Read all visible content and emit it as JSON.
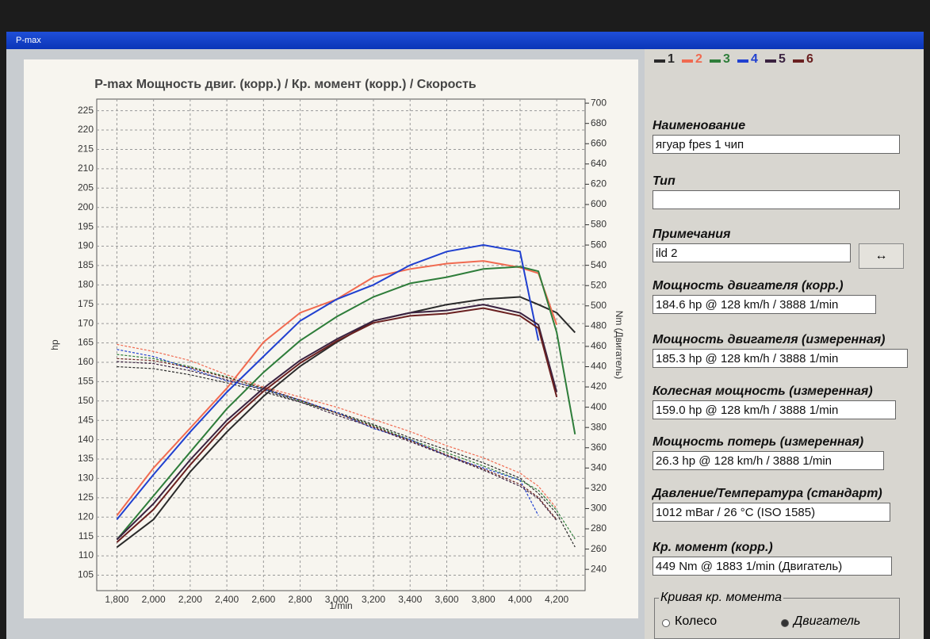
{
  "window": {
    "title": "P-max"
  },
  "chart_data": {
    "type": "line",
    "title": "P-max Мощность двиг. (корр.) / Кр. момент (корр.) / Скорость",
    "x_label": "1/min",
    "y_label": "hp",
    "y2_label": "Nm (Двигатель)",
    "x": [
      1800,
      2000,
      2200,
      2400,
      2600,
      2800,
      3000,
      3200,
      3400,
      3600,
      3800,
      4000,
      4100,
      4200,
      4300
    ],
    "xlim": [
      1690,
      4355
    ],
    "xticks": [
      {
        "value": 1800,
        "label": "1,800"
      },
      {
        "value": 2000,
        "label": "2,000"
      },
      {
        "value": 2200,
        "label": "2,200"
      },
      {
        "value": 2400,
        "label": "2,400"
      },
      {
        "value": 2600,
        "label": "2,600"
      },
      {
        "value": 2800,
        "label": "2,800"
      },
      {
        "value": 3000,
        "label": "3,000"
      },
      {
        "value": 3200,
        "label": "3,200"
      },
      {
        "value": 3400,
        "label": "3,400"
      },
      {
        "value": 3600,
        "label": "3,600"
      },
      {
        "value": 3800,
        "label": "3,800"
      },
      {
        "value": 4000,
        "label": "4,000"
      },
      {
        "value": 4200,
        "label": "4,200"
      }
    ],
    "ylim": [
      101,
      228
    ],
    "yticks": [
      105,
      110,
      115,
      120,
      125,
      130,
      135,
      140,
      145,
      150,
      155,
      160,
      165,
      170,
      175,
      180,
      185,
      190,
      195,
      200,
      205,
      210,
      215,
      220,
      225
    ],
    "y2lim": [
      219,
      704
    ],
    "y2ticks": [
      240,
      260,
      280,
      300,
      320,
      340,
      360,
      380,
      400,
      420,
      440,
      460,
      480,
      500,
      520,
      540,
      560,
      580,
      600,
      620,
      640,
      660,
      680,
      700
    ],
    "grid": true,
    "series": [
      {
        "name": "1",
        "color": "#2a2a2a",
        "values": [
          112.2,
          119.4,
          131.7,
          142,
          151.2,
          159,
          165.2,
          170.7,
          172.8,
          174.9,
          176.3,
          176.9,
          174.9,
          172.8,
          167.7
        ],
        "torque": [
          440,
          438,
          432,
          424,
          415,
          405,
          395,
          383,
          370,
          358,
          345,
          330,
          315,
          295,
          262
        ]
      },
      {
        "name": "2",
        "color": "#f06a50",
        "values": [
          120.4,
          132.7,
          143,
          153.3,
          165.2,
          172.8,
          176.3,
          182,
          184.1,
          185.5,
          186.2,
          184.5,
          183,
          169.7,
          null
        ],
        "torque": [
          462,
          455,
          446,
          432,
          420,
          410,
          400,
          388,
          376,
          362,
          350,
          335,
          322,
          300,
          null
        ]
      },
      {
        "name": "3",
        "color": "#2e7d3a",
        "values": [
          114.2,
          125.5,
          136.8,
          148,
          157.4,
          165.6,
          171.8,
          176.9,
          180.4,
          182,
          184.1,
          184.7,
          183.5,
          167.7,
          141.4
        ],
        "torque": [
          452,
          448,
          440,
          430,
          418,
          406,
          394,
          382,
          368,
          355,
          342,
          328,
          318,
          298,
          270
        ]
      },
      {
        "name": "4",
        "color": "#2040d0",
        "values": [
          119.4,
          131,
          142,
          152.3,
          161.5,
          170.7,
          176.3,
          180,
          185.1,
          188.6,
          190.3,
          188.6,
          165.6,
          null,
          null
        ],
        "torque": [
          457,
          450,
          438,
          426,
          418,
          407,
          395,
          379,
          368,
          352,
          340,
          328,
          293,
          null,
          null
        ]
      },
      {
        "name": "5",
        "color": "#3a2240",
        "values": [
          114.2,
          123.5,
          134.8,
          145,
          153.3,
          160.5,
          166,
          170.7,
          172.8,
          173.4,
          174.9,
          172.8,
          169.7,
          152.3,
          null
        ],
        "torque": [
          445,
          443,
          436,
          427,
          417,
          405,
          392,
          380,
          366,
          352,
          338,
          322,
          310,
          288,
          null
        ]
      },
      {
        "name": "6",
        "color": "#6a2020",
        "values": [
          113.5,
          122,
          133.5,
          144,
          152.5,
          159.8,
          165.5,
          170.2,
          172,
          172.6,
          174,
          172,
          168.8,
          151,
          null
        ],
        "torque": [
          448,
          446,
          439,
          429,
          419,
          407,
          394,
          381,
          367,
          353,
          339,
          324,
          311,
          289,
          null
        ]
      }
    ]
  },
  "panel": {
    "fields": [
      {
        "label": "Наименование",
        "value": "ягуар fpes 1 чип"
      },
      {
        "label": "Тип",
        "value": ""
      },
      {
        "label": "Примечания",
        "value": "ild 2"
      },
      {
        "label": "Мощность двигателя (корр.)",
        "value": "184.6 hp @ 128 km/h / 3888 1/min"
      },
      {
        "label": "Мощность двигателя (измеренная)",
        "value": "185.3 hp @ 128 km/h / 3888 1/min"
      },
      {
        "label": "Колесная мощность (измеренная)",
        "value": "159.0 hp @ 128 km/h / 3888 1/min"
      },
      {
        "label": "Мощность потерь (измеренная)",
        "value": "26.3 hp @ 128 km/h / 3888 1/min"
      },
      {
        "label": "Давление/Температура (стандарт)",
        "value": "1012 mBar / 26 °C (ISO 1585)"
      },
      {
        "label": "Кр. момент (корр.)",
        "value": "449 Nm @ 1883 1/min (Двигатель)"
      }
    ],
    "curve_group": {
      "label": "Кривая кр. момента",
      "options": [
        "Колесо",
        "Двигатель"
      ]
    }
  }
}
